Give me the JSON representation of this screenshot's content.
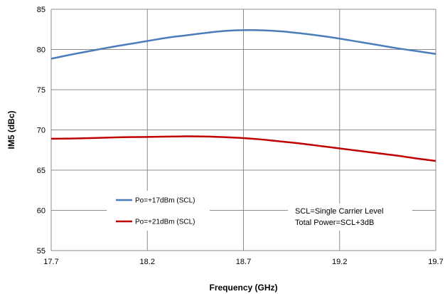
{
  "chart_data": {
    "type": "line",
    "title": "",
    "xlabel": "Frequency (GHz)",
    "ylabel": "IM5 (dBc)",
    "xlim": [
      17.7,
      19.7
    ],
    "ylim": [
      55,
      85
    ],
    "x_ticks": [
      "17.7",
      "18.2",
      "18.7",
      "19.2",
      "19.7"
    ],
    "y_ticks": [
      "55",
      "60",
      "65",
      "70",
      "75",
      "80",
      "85"
    ],
    "grid": true,
    "legend_position": "lower-left",
    "series": [
      {
        "name": "Po=+17dBm (SCL)",
        "color": "#4a7ebb",
        "x": [
          17.7,
          17.8,
          17.9,
          18.0,
          18.1,
          18.2,
          18.3,
          18.4,
          18.5,
          18.6,
          18.7,
          18.8,
          18.9,
          19.0,
          19.1,
          19.2,
          19.3,
          19.4,
          19.5,
          19.6,
          19.7
        ],
        "values": [
          78.85,
          79.35,
          79.8,
          80.25,
          80.65,
          81.05,
          81.45,
          81.75,
          82.05,
          82.3,
          82.4,
          82.38,
          82.25,
          82.0,
          81.7,
          81.35,
          80.95,
          80.55,
          80.15,
          79.8,
          79.45
        ]
      },
      {
        "name": "Po=+21dBm (SCL)",
        "color": "#c00000",
        "x": [
          17.7,
          17.8,
          17.9,
          18.0,
          18.1,
          18.2,
          18.3,
          18.4,
          18.5,
          18.6,
          18.7,
          18.8,
          18.9,
          19.0,
          19.1,
          19.2,
          19.3,
          19.4,
          19.5,
          19.6,
          19.7
        ],
        "values": [
          68.9,
          68.93,
          68.98,
          69.05,
          69.1,
          69.13,
          69.17,
          69.2,
          69.18,
          69.1,
          68.98,
          68.8,
          68.55,
          68.3,
          68.0,
          67.7,
          67.4,
          67.1,
          66.8,
          66.45,
          66.15
        ]
      }
    ],
    "annotations": [
      "SCL=Single Carrier Level",
      "Total Power=SCL+3dB"
    ]
  }
}
